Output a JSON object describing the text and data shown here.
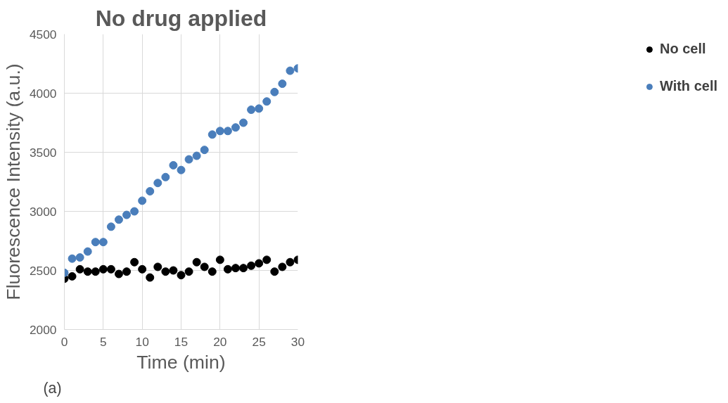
{
  "chart_data": {
    "type": "scatter",
    "title": "No drug applied",
    "xlabel": "Time (min)",
    "ylabel": "Fluorescence Intensity (a.u.)",
    "x": [
      0,
      1,
      2,
      3,
      4,
      5,
      6,
      7,
      8,
      9,
      10,
      11,
      12,
      13,
      14,
      15,
      16,
      17,
      18,
      19,
      20,
      21,
      22,
      23,
      24,
      25,
      26,
      27,
      28,
      29,
      30
    ],
    "series": [
      {
        "name": "No cell",
        "color": "#000000",
        "values": [
          2430,
          2450,
          2510,
          2490,
          2490,
          2510,
          2510,
          2470,
          2490,
          2570,
          2510,
          2440,
          2530,
          2490,
          2500,
          2460,
          2490,
          2570,
          2530,
          2490,
          2590,
          2510,
          2520,
          2520,
          2540,
          2560,
          2590,
          2490,
          2530,
          2570,
          2590
        ]
      },
      {
        "name": "With cell",
        "color": "#4a7ebb",
        "values": [
          2480,
          2600,
          2610,
          2660,
          2740,
          2740,
          2870,
          2930,
          2970,
          3000,
          3090,
          3170,
          3240,
          3290,
          3390,
          3350,
          3440,
          3470,
          3520,
          3650,
          3680,
          3680,
          3710,
          3750,
          3860,
          3870,
          3930,
          4010,
          4080,
          4190,
          4210
        ]
      }
    ],
    "xlim": [
      0,
      30
    ],
    "xticks": [
      0,
      5,
      10,
      15,
      20,
      25,
      30
    ],
    "ylim": [
      2000,
      4500
    ],
    "yticks": [
      2000,
      2500,
      3000,
      3500,
      4000,
      4500
    ],
    "grid": true,
    "legend": "right",
    "marker": "circle",
    "annotations": [
      "(a)"
    ]
  }
}
